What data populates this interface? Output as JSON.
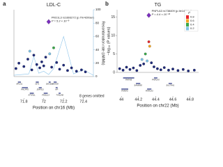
{
  "chart_data": [
    {
      "type": "scatter",
      "panel_label": "a",
      "title": "LDL-C",
      "annotation": [
        "PKD1L3 rs1893272 (p.Thr429Ser)",
        "P = 5.3 × 10⁻⁹"
      ],
      "xlabel": "Position on chr16 (Mb)",
      "y2label": "Recombination rate (cM/Mb)",
      "xlim": [
        71.7,
        72.5
      ],
      "xticks": [
        71.8,
        72,
        72.2,
        72.4
      ],
      "ylim": [
        0,
        10
      ],
      "y2lim": [
        0,
        100
      ],
      "y2ticks": [
        0,
        20,
        40,
        60,
        80,
        100
      ],
      "note": "8 genes omitted",
      "x": [
        71.72,
        71.75,
        71.8,
        71.84,
        71.88,
        71.9,
        71.93,
        71.96,
        71.98,
        72.0,
        72.02,
        72.05,
        72.08,
        72.1,
        72.13,
        72.16,
        72.2,
        72.24,
        72.28,
        72.33,
        72.38,
        72.42,
        71.86,
        72.06
      ],
      "values": [
        1.2,
        2.0,
        1.5,
        2.6,
        1.0,
        3.2,
        1.8,
        1.3,
        2.2,
        1.6,
        2.9,
        8.2,
        1.4,
        4.3,
        2.1,
        1.1,
        1.7,
        0.9,
        1.3,
        0.8,
        1.0,
        0.7,
        3.8,
        3.4
      ],
      "colors": [
        "#1f2a7a",
        "#1f2a7a",
        "#1f2a7a",
        "#1f2a7a",
        "#1f2a7a",
        "#1f2a7a",
        "#1f2a7a",
        "#1f2a7a",
        "#1f2a7a",
        "#1f2a7a",
        "#1f2a7a",
        "#7b2fbe",
        "#1f2a7a",
        "#3aa84a",
        "#1f2a7a",
        "#1f2a7a",
        "#1f2a7a",
        "#1f2a7a",
        "#1f2a7a",
        "#1f2a7a",
        "#1f2a7a",
        "#1f2a7a",
        "#7fc3e6",
        "#7fc3e6"
      ],
      "lead_index": 11,
      "recombination": {
        "x": [
          71.7,
          71.85,
          71.9,
          71.95,
          72.0,
          72.05,
          72.1,
          72.2,
          72.3,
          72.4,
          72.5
        ],
        "values": [
          2,
          4,
          30,
          5,
          8,
          3,
          12,
          60,
          4,
          10,
          2
        ]
      },
      "genes": [
        "AP1G1",
        "PHLPP2",
        "ATXN1L",
        "IST1",
        "ZNF821",
        "PKD1L3",
        "DHX38",
        "HP",
        "TXNL4B",
        "DHODH"
      ],
      "gene_start": [
        71.74,
        71.78,
        71.86,
        71.92,
        71.95,
        72.0,
        72.1,
        72.12,
        72.15,
        72.05
      ],
      "gene_end": [
        71.77,
        71.84,
        71.9,
        71.95,
        71.98,
        72.04,
        72.13,
        72.14,
        72.17,
        72.07
      ]
    },
    {
      "type": "scatter",
      "panel_label": "b",
      "title": "TG",
      "annotation": [
        "PNPLA3 rs738409 (p.Ile148Met)",
        "P = 4.4 × 10⁻¹⁶"
      ],
      "xlabel": "Position on chr22 (Mb)",
      "ylabel": "−log₁₀ (P values)",
      "xlim": [
        43.95,
        44.9
      ],
      "xticks": [
        44,
        44.2,
        44.4,
        44.6,
        44.8
      ],
      "ylim": [
        0,
        17
      ],
      "yticks": [
        0,
        5,
        10,
        15
      ],
      "legend_title": "r²",
      "legend_labels": [
        0.8,
        0.6,
        0.4,
        0.2
      ],
      "legend_colors": [
        "#e5262b",
        "#f5a623",
        "#3aa84a",
        "#7fc3e6"
      ],
      "x": [
        43.98,
        44.02,
        44.06,
        44.1,
        44.14,
        44.18,
        44.22,
        44.26,
        44.28,
        44.3,
        44.32,
        44.32,
        44.33,
        44.35,
        44.38,
        44.42,
        44.46,
        44.5,
        44.55,
        44.6,
        44.66,
        44.72,
        44.78,
        44.85,
        44.24
      ],
      "values": [
        1.0,
        0.6,
        1.4,
        0.8,
        1.2,
        0.5,
        1.9,
        2.3,
        5.0,
        3.1,
        15.5,
        8.3,
        7.1,
        2.6,
        1.5,
        1.0,
        0.7,
        1.3,
        0.6,
        0.9,
        0.5,
        0.8,
        0.4,
        0.6,
        3.5
      ],
      "colors": [
        "#1f2a7a",
        "#1f2a7a",
        "#1f2a7a",
        "#1f2a7a",
        "#1f2a7a",
        "#1f2a7a",
        "#1f2a7a",
        "#1f2a7a",
        "#3aa84a",
        "#7fc3e6",
        "#7b2fbe",
        "#e5262b",
        "#f5a623",
        "#1f2a7a",
        "#1f2a7a",
        "#1f2a7a",
        "#1f2a7a",
        "#1f2a7a",
        "#1f2a7a",
        "#1f2a7a",
        "#1f2a7a",
        "#1f2a7a",
        "#1f2a7a",
        "#1f2a7a",
        "#7fc3e6"
      ],
      "lead_index": 10,
      "genes": [
        "PARVB",
        "SAMM50",
        "PNPLA3",
        "PNPLA5",
        "SULT4A1",
        "PARVG"
      ],
      "gene_start": [
        44.02,
        44.17,
        44.3,
        44.38,
        44.55,
        44.0
      ],
      "gene_end": [
        44.15,
        44.22,
        44.35,
        44.42,
        44.59,
        44.08
      ]
    }
  ]
}
